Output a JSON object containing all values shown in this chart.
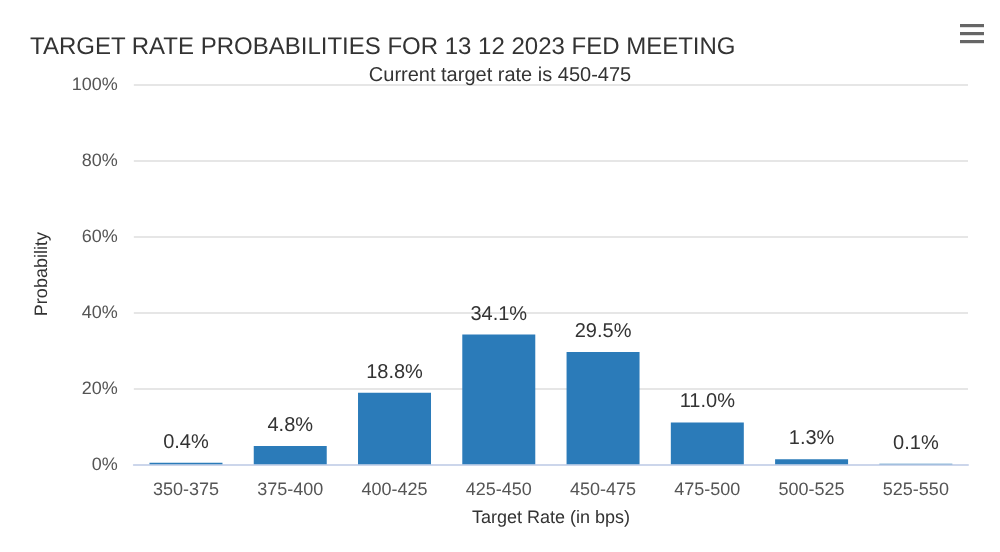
{
  "chart_data": {
    "type": "bar",
    "title": "TARGET RATE PROBABILITIES FOR 13 12 2023 FED MEETING",
    "subtitle": "Current target rate is 450-475",
    "xlabel": "Target Rate (in bps)",
    "ylabel": "Probability",
    "categories": [
      "350-375",
      "375-400",
      "400-425",
      "425-450",
      "450-475",
      "475-500",
      "500-525",
      "525-550"
    ],
    "values": [
      0.4,
      4.8,
      18.8,
      34.1,
      29.5,
      11.0,
      1.3,
      0.1
    ],
    "value_labels": [
      "0.4%",
      "4.8%",
      "18.8%",
      "34.1%",
      "29.5%",
      "11.0%",
      "1.3%",
      "0.1%"
    ],
    "color": "#2b7bb9",
    "ylim": [
      0,
      100
    ],
    "yticks": [
      {
        "value": 0,
        "label": "0%"
      },
      {
        "value": 20,
        "label": "20%"
      },
      {
        "value": 40,
        "label": "40%"
      },
      {
        "value": 60,
        "label": "60%"
      },
      {
        "value": 80,
        "label": "80%"
      },
      {
        "value": 100,
        "label": "100%"
      }
    ],
    "grid": "y"
  }
}
